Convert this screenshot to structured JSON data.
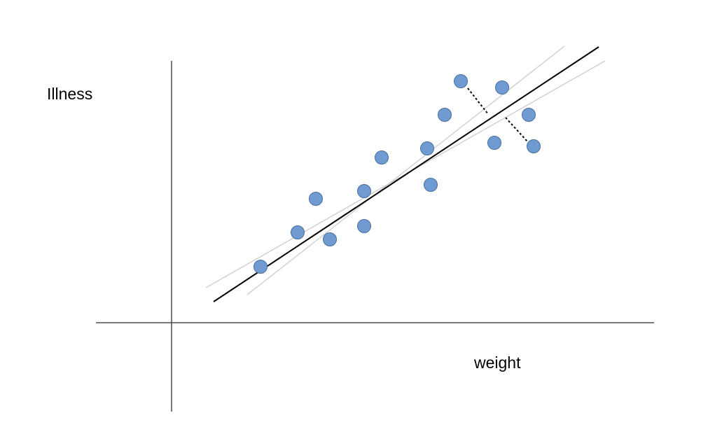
{
  "labels": {
    "y_axis": "Illness",
    "x_axis": "weight"
  },
  "colors": {
    "point_fill": "#6f9ad2",
    "point_stroke": "#4a6f9f",
    "fit_line": "#000000",
    "candidate_line": "#c8c8c8",
    "axis": "#4d4d4d",
    "residual": "#000000"
  }
}
